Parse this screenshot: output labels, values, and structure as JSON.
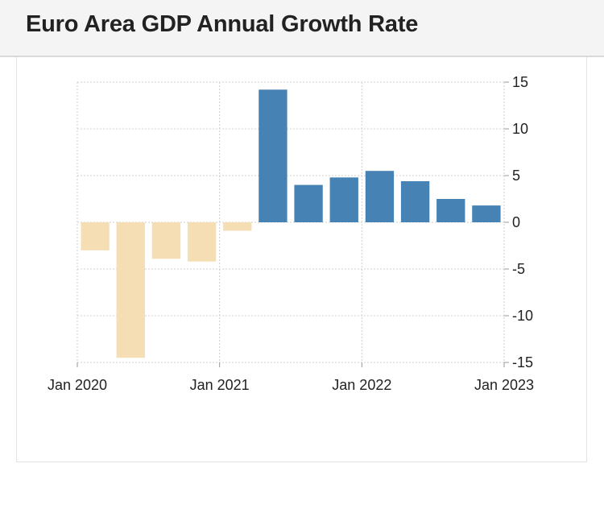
{
  "header": {
    "title": "Euro Area GDP Annual Growth Rate"
  },
  "chart_data": {
    "type": "bar",
    "title": "Euro Area GDP Annual Growth Rate",
    "xlabel": "",
    "ylabel": "",
    "categories": [
      "2020-Q1",
      "2020-Q2",
      "2020-Q3",
      "2020-Q4",
      "2021-Q1",
      "2021-Q2",
      "2021-Q3",
      "2021-Q4",
      "2022-Q1",
      "2022-Q2",
      "2022-Q3",
      "2022-Q4"
    ],
    "values": [
      -3.0,
      -14.5,
      -3.9,
      -4.2,
      -0.9,
      14.2,
      4.0,
      4.8,
      5.5,
      4.4,
      2.5,
      1.8
    ],
    "x_tick_labels": [
      "Jan 2020",
      "Jan 2021",
      "Jan 2022",
      "Jan 2023"
    ],
    "y_ticks": [
      "15",
      "10",
      "5",
      "0",
      "-5",
      "-10",
      "-15"
    ],
    "ylim": [
      -15,
      15
    ],
    "grid": true,
    "y_axis_side": "right",
    "colors": {
      "positive": "#4682b4",
      "negative": "#f5deb3",
      "grid": "#cfcfcf"
    }
  }
}
